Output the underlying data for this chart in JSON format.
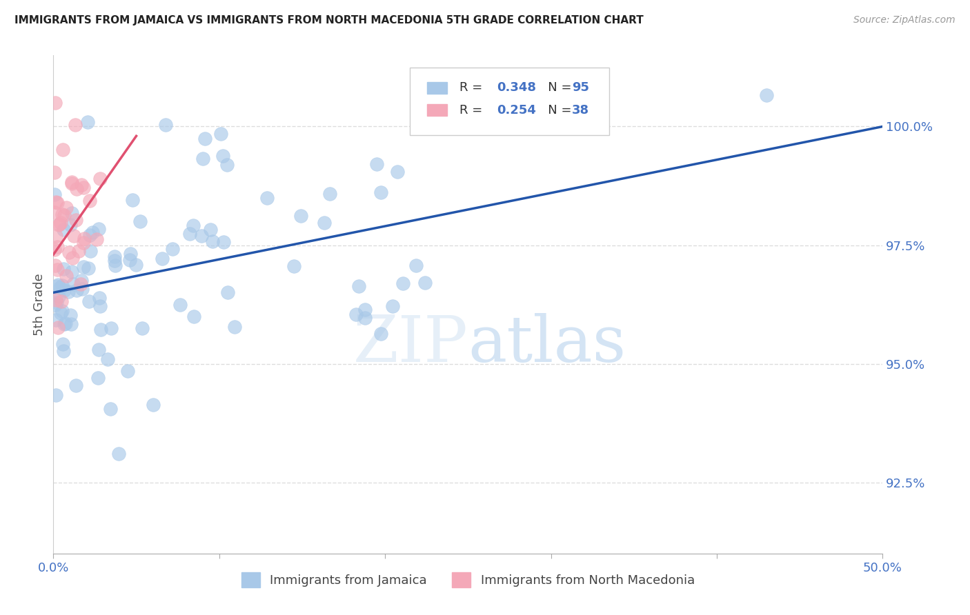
{
  "title": "IMMIGRANTS FROM JAMAICA VS IMMIGRANTS FROM NORTH MACEDONIA 5TH GRADE CORRELATION CHART",
  "source": "Source: ZipAtlas.com",
  "ylabel": "5th Grade",
  "y_tick_labels": [
    "92.5%",
    "95.0%",
    "97.5%",
    "100.0%"
  ],
  "y_tick_values": [
    92.5,
    95.0,
    97.5,
    100.0
  ],
  "xlim": [
    0,
    50
  ],
  "ylim": [
    91.0,
    101.5
  ],
  "legend_r1": "R = 0.348",
  "legend_n1": "N = 95",
  "legend_r2": "R = 0.254",
  "legend_n2": "N = 38",
  "blue_color": "#a8c8e8",
  "pink_color": "#f4a8b8",
  "blue_line_color": "#2255aa",
  "pink_line_color": "#e05070",
  "background_color": "#ffffff",
  "grid_color": "#dddddd",
  "legend_text_color": "#4472c4",
  "jamaica_label": "Immigrants from Jamaica",
  "macedonia_label": "Immigrants from North Macedonia",
  "blue_line_x0": 0,
  "blue_line_y0": 96.5,
  "blue_line_x1": 50,
  "blue_line_y1": 100.0,
  "pink_line_x0": 0,
  "pink_line_y0": 97.3,
  "pink_line_x1": 5.0,
  "pink_line_y1": 99.8
}
